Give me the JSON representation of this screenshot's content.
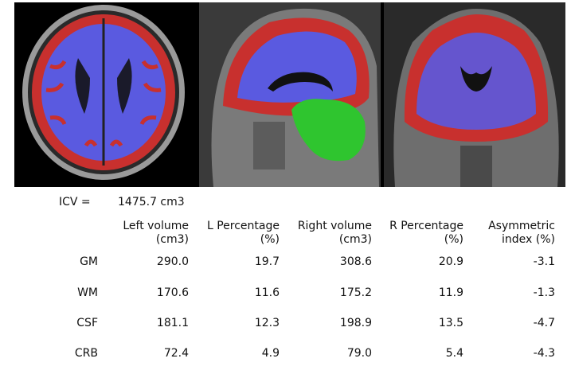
{
  "icv": {
    "label": "ICV =",
    "value": "1475.7 cm3"
  },
  "columns": [
    {
      "line1": "Left volume",
      "line2": "(cm3)"
    },
    {
      "line1": "L Percentage",
      "line2": "(%)"
    },
    {
      "line1": "Right volume",
      "line2": "(cm3)"
    },
    {
      "line1": "R Percentage",
      "line2": "(%)"
    },
    {
      "line1": "Asymmetric",
      "line2": "index (%)"
    }
  ],
  "rows": [
    {
      "label": "GM",
      "values": [
        "290.0",
        "19.7",
        "308.6",
        "20.9",
        "-3.1"
      ]
    },
    {
      "label": "WM",
      "values": [
        "170.6",
        "11.6",
        "175.2",
        "11.9",
        "-1.3"
      ]
    },
    {
      "label": "CSF",
      "values": [
        "181.1",
        "12.3",
        "198.9",
        "13.5",
        "-4.7"
      ]
    },
    {
      "label": "CRB",
      "values": [
        "72.4",
        "4.9",
        "79.0",
        "5.4",
        "-4.3"
      ]
    }
  ],
  "colors": {
    "gray_matter": "#c8302e",
    "white_matter": "#5a5ae0",
    "cerebellum": "#2fc52f",
    "background": "#000000"
  }
}
